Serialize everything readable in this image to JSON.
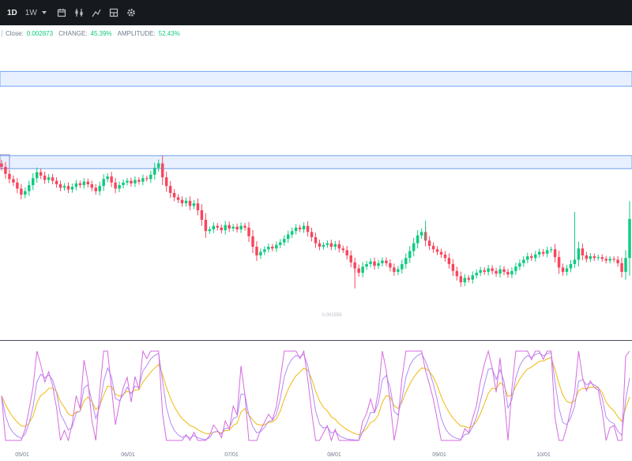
{
  "toolbar": {
    "intervals": [
      "1D",
      "1W"
    ],
    "icons": [
      "calendar-icon",
      "indicator-icon",
      "drawing-icon",
      "layout-icon",
      "settings-icon"
    ]
  },
  "legend": {
    "close_label": "Close:",
    "close_value": "0.002873",
    "change_label": "CHANGE:",
    "change_value": "45.39%",
    "amplitude_label": "AMPLITUDE:",
    "amplitude_value": "52.43%"
  },
  "colors": {
    "up": "#0ecb81",
    "down": "#f6465d",
    "zone_fill": "#dbe8ff",
    "zone_stroke": "#6fa2ee",
    "k_line": "#d66be0",
    "d_line": "#b18cf5",
    "j_line": "#f0b90b"
  },
  "chart_data": {
    "type": "candlestick",
    "x_ticks": [
      "05/01",
      "06/01",
      "07/01",
      "08/01",
      "09/01",
      "10/01"
    ],
    "price_label": "0.001559",
    "zones": [
      {
        "low": 0.0293,
        "high": 0.031
      },
      {
        "low": 0.0198,
        "high": 0.0213
      }
    ],
    "ylim": [
      0.0005,
      0.0345
    ],
    "close_series": [
      0.02,
      0.0192,
      0.0186,
      0.0182,
      0.0175,
      0.0168,
      0.0172,
      0.0179,
      0.0187,
      0.0194,
      0.019,
      0.0185,
      0.0188,
      0.0184,
      0.018,
      0.0176,
      0.0178,
      0.0174,
      0.0177,
      0.0181,
      0.0179,
      0.0183,
      0.018,
      0.0176,
      0.0172,
      0.0178,
      0.0186,
      0.0189,
      0.0182,
      0.0175,
      0.0179,
      0.0182,
      0.0184,
      0.0181,
      0.0185,
      0.0183,
      0.0187,
      0.0186,
      0.0191,
      0.0199,
      0.0204,
      0.0188,
      0.0178,
      0.017,
      0.0165,
      0.0162,
      0.0158,
      0.0161,
      0.0155,
      0.0158,
      0.015,
      0.0139,
      0.0126,
      0.0128,
      0.0132,
      0.013,
      0.0127,
      0.0133,
      0.0129,
      0.0131,
      0.0128,
      0.0132,
      0.013,
      0.012,
      0.0108,
      0.0098,
      0.0102,
      0.0105,
      0.0108,
      0.0106,
      0.011,
      0.0113,
      0.0117,
      0.0122,
      0.0126,
      0.013,
      0.0128,
      0.0132,
      0.0125,
      0.0119,
      0.0112,
      0.0108,
      0.011,
      0.0112,
      0.0108,
      0.0111,
      0.0106,
      0.0104,
      0.0098,
      0.009,
      0.0083,
      0.0078,
      0.0085,
      0.0088,
      0.0091,
      0.0086,
      0.0089,
      0.0092,
      0.0089,
      0.0084,
      0.0079,
      0.0082,
      0.0088,
      0.0095,
      0.0103,
      0.0112,
      0.0121,
      0.0125,
      0.0115,
      0.0109,
      0.0105,
      0.0102,
      0.0099,
      0.0095,
      0.0088,
      0.008,
      0.0074,
      0.0067,
      0.0072,
      0.007,
      0.0075,
      0.0078,
      0.0081,
      0.0079,
      0.0083,
      0.008,
      0.0077,
      0.0082,
      0.0079,
      0.0076,
      0.008,
      0.0085,
      0.0089,
      0.0093,
      0.0097,
      0.0095,
      0.0099,
      0.0102,
      0.01,
      0.0104,
      0.0105,
      0.0096,
      0.0084,
      0.0079,
      0.0083,
      0.0088,
      0.0093,
      0.0106,
      0.0098,
      0.0094,
      0.0097,
      0.0095,
      0.0096,
      0.0094,
      0.0092,
      0.0094,
      0.0093,
      0.0089,
      0.0079,
      0.0095,
      0.014
    ]
  }
}
